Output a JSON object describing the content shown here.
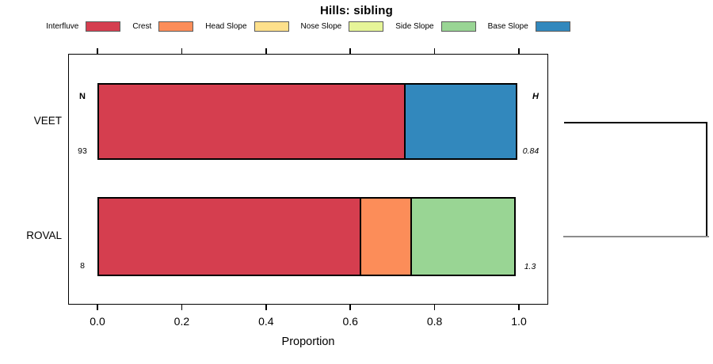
{
  "title": "Hills: sibling",
  "legend": {
    "items": [
      {
        "label": "Interfluve",
        "color": "#D53E4F"
      },
      {
        "label": "Crest",
        "color": "#FC8D59"
      },
      {
        "label": "Head Slope",
        "color": "#FEE08B"
      },
      {
        "label": "Nose Slope",
        "color": "#E6F598"
      },
      {
        "label": "Side Slope",
        "color": "#99D594"
      },
      {
        "label": "Base Slope",
        "color": "#3288BD"
      }
    ],
    "swatch_border_color": "#5a5a5a"
  },
  "chart_data": {
    "type": "bar",
    "orientation": "horizontal",
    "stacked": true,
    "title": "Hills: sibling",
    "xlabel": "Proportion",
    "xlim": [
      0,
      1
    ],
    "x_tick_labels": [
      "0.0",
      "0.2",
      "0.4",
      "0.6",
      "0.8",
      "1.0"
    ],
    "grid": false,
    "legend_position": "top",
    "categories": [
      "VEET",
      "ROVAL"
    ],
    "series": [
      {
        "name": "Interfluve",
        "color": "#D53E4F",
        "values": [
          0.731,
          0.625
        ]
      },
      {
        "name": "Crest",
        "color": "#FC8D59",
        "values": [
          0,
          0.125
        ]
      },
      {
        "name": "Head Slope",
        "color": "#FEE08B",
        "values": [
          0,
          0
        ]
      },
      {
        "name": "Nose Slope",
        "color": "#E6F598",
        "values": [
          0,
          0
        ]
      },
      {
        "name": "Side Slope",
        "color": "#99D594",
        "values": [
          0,
          0.25
        ]
      },
      {
        "name": "Base Slope",
        "color": "#3288BD",
        "values": [
          0.269,
          0
        ]
      }
    ],
    "annotations": {
      "left_header": "N",
      "right_header": "H",
      "rows": [
        {
          "category": "VEET",
          "n": "93",
          "h": "0.84"
        },
        {
          "category": "ROVAL",
          "n": "8",
          "h": "1.3"
        }
      ]
    }
  },
  "dendrogram": {
    "leaves": [
      "VEET",
      "ROVAL"
    ],
    "top_branch_color": "#000000",
    "merge_line_color": "#000000",
    "bottom_branch_color": "#8c8c8c"
  }
}
